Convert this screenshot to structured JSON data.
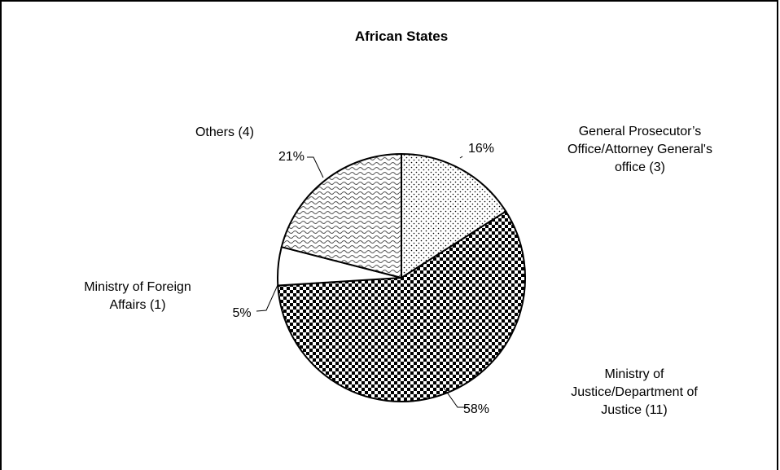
{
  "chart_data": {
    "type": "pie",
    "title": "African States",
    "slices": [
      {
        "label_lines": [
          "General Prosecutor’s",
          "Office/Attorney General's",
          "office (3)"
        ],
        "value": 16,
        "value_label": "16%",
        "pattern": "dots"
      },
      {
        "label_lines": [
          "Ministry of",
          "Justice/Department of",
          "Justice (11)"
        ],
        "value": 58,
        "value_label": "58%",
        "pattern": "checker"
      },
      {
        "label_lines": [
          "Ministry of Foreign",
          "Affairs (1)"
        ],
        "value": 5,
        "value_label": "5%",
        "pattern": "solid-white"
      },
      {
        "label_lines": [
          "Others (4)"
        ],
        "value": 21,
        "value_label": "21%",
        "pattern": "waves"
      }
    ]
  }
}
